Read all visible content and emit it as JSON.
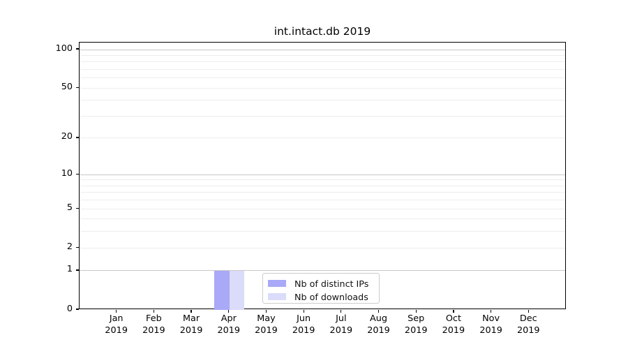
{
  "chart_data": {
    "type": "bar",
    "title": "int.intact.db 2019",
    "x_tick_labels": [
      [
        "Jan",
        "2019"
      ],
      [
        "Feb",
        "2019"
      ],
      [
        "Mar",
        "2019"
      ],
      [
        "Apr",
        "2019"
      ],
      [
        "May",
        "2019"
      ],
      [
        "Jun",
        "2019"
      ],
      [
        "Jul",
        "2019"
      ],
      [
        "Aug",
        "2019"
      ],
      [
        "Sep",
        "2019"
      ],
      [
        "Oct",
        "2019"
      ],
      [
        "Nov",
        "2019"
      ],
      [
        "Dec",
        "2019"
      ]
    ],
    "series": [
      {
        "name": "Nb of distinct IPs",
        "color": "#a9a9f8",
        "values": [
          0,
          0,
          0,
          1,
          0,
          0,
          0,
          0,
          0,
          0,
          0,
          0
        ]
      },
      {
        "name": "Nb of downloads",
        "color": "#dbdbfa",
        "values": [
          0,
          0,
          0,
          1,
          0,
          0,
          0,
          0,
          0,
          0,
          0,
          0
        ]
      }
    ],
    "yscale": "log1p",
    "ylim": [
      0,
      100
    ],
    "y_tick_values": [
      0,
      1,
      2,
      5,
      10,
      20,
      50,
      100
    ],
    "grid": {
      "major_values": [
        1,
        10,
        100
      ],
      "minor_values": [
        2,
        3,
        4,
        5,
        6,
        7,
        8,
        9,
        20,
        30,
        40,
        50,
        60,
        70,
        80,
        90
      ],
      "major_color": "#c8c8c8",
      "minor_color": "#ededed"
    },
    "legend": {
      "position": "lower center inside"
    },
    "colors": {
      "spine": "#000000",
      "text": "#000000",
      "background": "#ffffff"
    }
  }
}
